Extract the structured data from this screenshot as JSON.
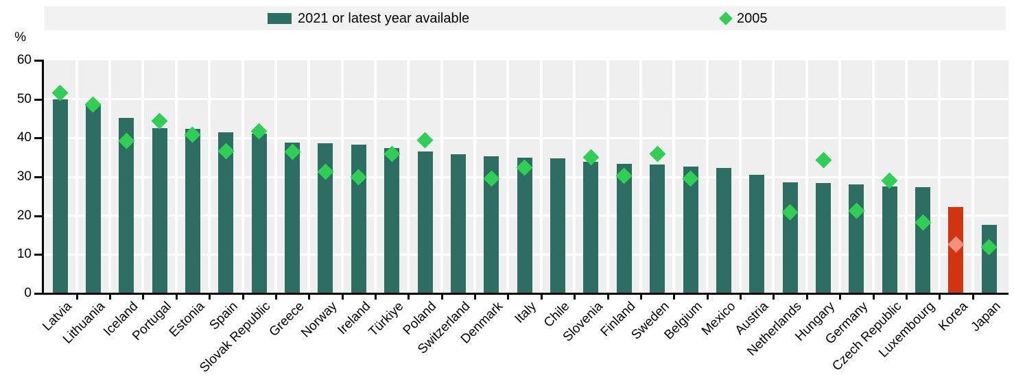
{
  "chart_data": {
    "type": "bar",
    "title": "",
    "ylabel": "%",
    "xlabel": "",
    "ylim": [
      0,
      60
    ],
    "yticks": [
      0,
      10,
      20,
      30,
      40,
      50,
      60
    ],
    "grid": true,
    "legend_position": "top",
    "legend": {
      "bar_label": "2021 or latest year available",
      "marker_label": "2005"
    },
    "categories": [
      "Latvia",
      "Lithuania",
      "Iceland",
      "Portugal",
      "Estonia",
      "Spain",
      "Slovak Republic",
      "Greece",
      "Norway",
      "Ireland",
      "Türkiye",
      "Poland",
      "Switzerland",
      "Denmark",
      "Italy",
      "Chile",
      "Slovenia",
      "Finland",
      "Sweden",
      "Belgium",
      "Mexico",
      "Austria",
      "Netherlands",
      "Hungary",
      "Germany",
      "Czech Republic",
      "Luxembourg",
      "Korea",
      "Japan"
    ],
    "series": [
      {
        "name": "2021 or latest year available",
        "type": "bar",
        "values": [
          50.0,
          48.9,
          45.2,
          42.5,
          42.3,
          41.4,
          41.2,
          38.8,
          38.6,
          38.3,
          37.4,
          36.6,
          35.9,
          35.3,
          35.0,
          34.8,
          33.9,
          33.4,
          33.2,
          32.6,
          32.3,
          30.5,
          28.6,
          28.5,
          28.1,
          27.6,
          27.4,
          22.2,
          17.7
        ]
      },
      {
        "name": "2005",
        "type": "scatter",
        "marker": "diamond",
        "values": [
          51.6,
          48.6,
          39.3,
          44.4,
          40.8,
          36.6,
          41.8,
          36.5,
          31.4,
          30.0,
          35.9,
          39.4,
          null,
          29.6,
          32.4,
          null,
          35.0,
          30.2,
          35.9,
          29.6,
          null,
          null,
          21.0,
          34.4,
          21.3,
          29.1,
          18.3,
          12.7,
          11.9
        ]
      }
    ],
    "highlight_category": "Korea",
    "colors": {
      "bar": "#2D6E62",
      "marker": "#2FCE55",
      "highlight_bar": "#D2340F",
      "highlight_marker": "#F2917D",
      "plot_background": "#EFEFEF",
      "legend_background": "#F2F2F2",
      "gridline": "#FFFFFF",
      "axis": "#000000",
      "text": "#000000"
    }
  }
}
